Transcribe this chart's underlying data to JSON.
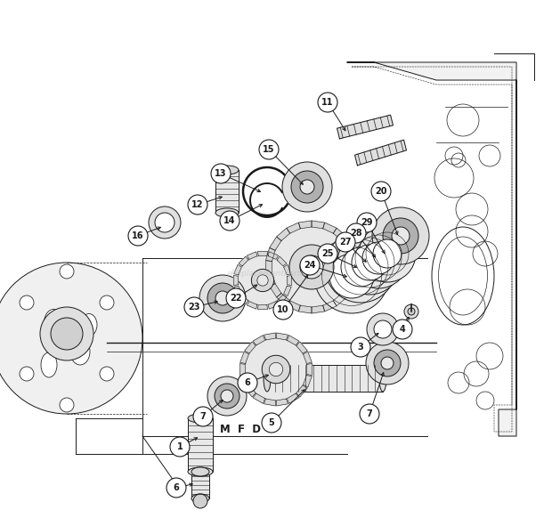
{
  "bg_color": "#ffffff",
  "line_color": "#1a1a1a",
  "watermark": "eReplacementParts.com",
  "fig_width": 6.2,
  "fig_height": 5.82,
  "dpi": 100
}
